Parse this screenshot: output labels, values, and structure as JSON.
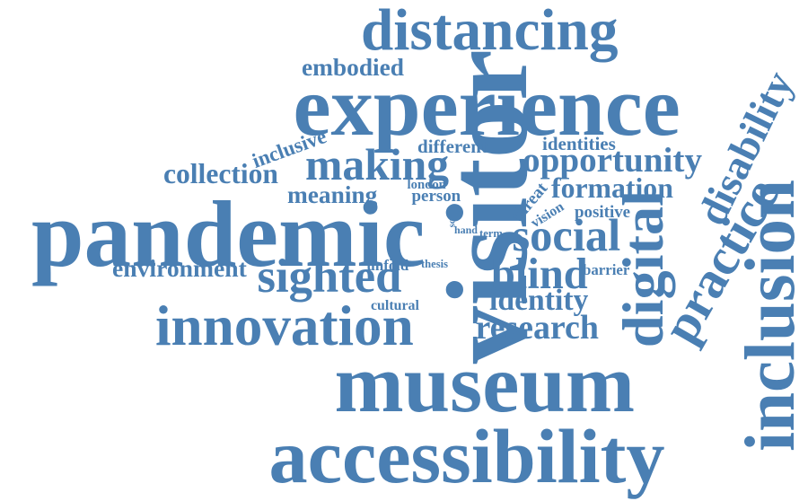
{
  "colors": {
    "word": "#4a7fb3",
    "background": "#ffffff"
  },
  "words": [
    "museum",
    "pandemic",
    "experience",
    "visitor",
    "accessibility",
    "distancing",
    "innovation",
    "inclusion",
    "practice",
    "disability",
    "digital",
    "sighted",
    "making",
    "social",
    "blind",
    "opportunity",
    "research",
    "formation",
    "identity",
    "embodied",
    "inclusive",
    "collection",
    "meaning",
    "environment",
    "identities",
    "different",
    "person",
    "london",
    "threat",
    "vision",
    "positive",
    "hand",
    "term",
    "unfold",
    "thesis",
    "barrier",
    "cultural",
    "sc"
  ]
}
